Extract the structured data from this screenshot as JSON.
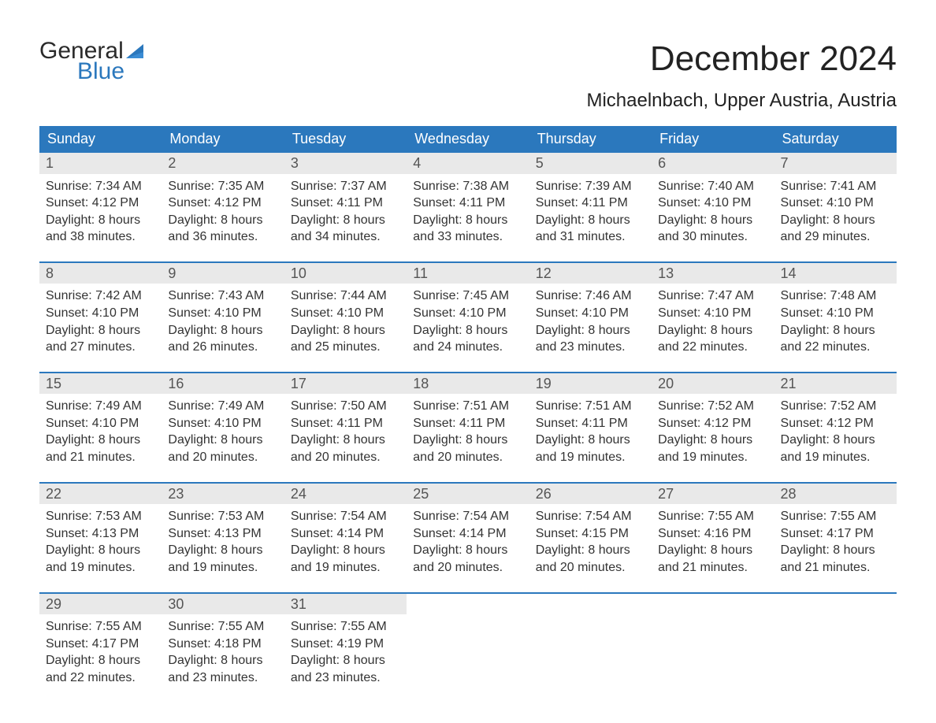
{
  "brand": {
    "general": "General",
    "blue": "Blue",
    "flag_color": "#2b78bd",
    "general_color": "#2a2a2a",
    "blue_color": "#2b78bd"
  },
  "title": "December 2024",
  "subtitle": "Michaelnbach, Upper Austria, Austria",
  "colors": {
    "header_bg": "#2b78bd",
    "header_text": "#ffffff",
    "week_border": "#2b78bd",
    "date_bg": "#e9e9e9",
    "date_text": "#555555",
    "body_text": "#333333",
    "background": "#ffffff"
  },
  "typography": {
    "title_fontsize": 44,
    "subtitle_fontsize": 24,
    "dayname_fontsize": 18,
    "date_fontsize": 18,
    "info_fontsize": 16
  },
  "daynames": [
    "Sunday",
    "Monday",
    "Tuesday",
    "Wednesday",
    "Thursday",
    "Friday",
    "Saturday"
  ],
  "weeks": [
    [
      {
        "date": "1",
        "sunrise": "Sunrise: 7:34 AM",
        "sunset": "Sunset: 4:12 PM",
        "day1": "Daylight: 8 hours",
        "day2": "and 38 minutes."
      },
      {
        "date": "2",
        "sunrise": "Sunrise: 7:35 AM",
        "sunset": "Sunset: 4:12 PM",
        "day1": "Daylight: 8 hours",
        "day2": "and 36 minutes."
      },
      {
        "date": "3",
        "sunrise": "Sunrise: 7:37 AM",
        "sunset": "Sunset: 4:11 PM",
        "day1": "Daylight: 8 hours",
        "day2": "and 34 minutes."
      },
      {
        "date": "4",
        "sunrise": "Sunrise: 7:38 AM",
        "sunset": "Sunset: 4:11 PM",
        "day1": "Daylight: 8 hours",
        "day2": "and 33 minutes."
      },
      {
        "date": "5",
        "sunrise": "Sunrise: 7:39 AM",
        "sunset": "Sunset: 4:11 PM",
        "day1": "Daylight: 8 hours",
        "day2": "and 31 minutes."
      },
      {
        "date": "6",
        "sunrise": "Sunrise: 7:40 AM",
        "sunset": "Sunset: 4:10 PM",
        "day1": "Daylight: 8 hours",
        "day2": "and 30 minutes."
      },
      {
        "date": "7",
        "sunrise": "Sunrise: 7:41 AM",
        "sunset": "Sunset: 4:10 PM",
        "day1": "Daylight: 8 hours",
        "day2": "and 29 minutes."
      }
    ],
    [
      {
        "date": "8",
        "sunrise": "Sunrise: 7:42 AM",
        "sunset": "Sunset: 4:10 PM",
        "day1": "Daylight: 8 hours",
        "day2": "and 27 minutes."
      },
      {
        "date": "9",
        "sunrise": "Sunrise: 7:43 AM",
        "sunset": "Sunset: 4:10 PM",
        "day1": "Daylight: 8 hours",
        "day2": "and 26 minutes."
      },
      {
        "date": "10",
        "sunrise": "Sunrise: 7:44 AM",
        "sunset": "Sunset: 4:10 PM",
        "day1": "Daylight: 8 hours",
        "day2": "and 25 minutes."
      },
      {
        "date": "11",
        "sunrise": "Sunrise: 7:45 AM",
        "sunset": "Sunset: 4:10 PM",
        "day1": "Daylight: 8 hours",
        "day2": "and 24 minutes."
      },
      {
        "date": "12",
        "sunrise": "Sunrise: 7:46 AM",
        "sunset": "Sunset: 4:10 PM",
        "day1": "Daylight: 8 hours",
        "day2": "and 23 minutes."
      },
      {
        "date": "13",
        "sunrise": "Sunrise: 7:47 AM",
        "sunset": "Sunset: 4:10 PM",
        "day1": "Daylight: 8 hours",
        "day2": "and 22 minutes."
      },
      {
        "date": "14",
        "sunrise": "Sunrise: 7:48 AM",
        "sunset": "Sunset: 4:10 PM",
        "day1": "Daylight: 8 hours",
        "day2": "and 22 minutes."
      }
    ],
    [
      {
        "date": "15",
        "sunrise": "Sunrise: 7:49 AM",
        "sunset": "Sunset: 4:10 PM",
        "day1": "Daylight: 8 hours",
        "day2": "and 21 minutes."
      },
      {
        "date": "16",
        "sunrise": "Sunrise: 7:49 AM",
        "sunset": "Sunset: 4:10 PM",
        "day1": "Daylight: 8 hours",
        "day2": "and 20 minutes."
      },
      {
        "date": "17",
        "sunrise": "Sunrise: 7:50 AM",
        "sunset": "Sunset: 4:11 PM",
        "day1": "Daylight: 8 hours",
        "day2": "and 20 minutes."
      },
      {
        "date": "18",
        "sunrise": "Sunrise: 7:51 AM",
        "sunset": "Sunset: 4:11 PM",
        "day1": "Daylight: 8 hours",
        "day2": "and 20 minutes."
      },
      {
        "date": "19",
        "sunrise": "Sunrise: 7:51 AM",
        "sunset": "Sunset: 4:11 PM",
        "day1": "Daylight: 8 hours",
        "day2": "and 19 minutes."
      },
      {
        "date": "20",
        "sunrise": "Sunrise: 7:52 AM",
        "sunset": "Sunset: 4:12 PM",
        "day1": "Daylight: 8 hours",
        "day2": "and 19 minutes."
      },
      {
        "date": "21",
        "sunrise": "Sunrise: 7:52 AM",
        "sunset": "Sunset: 4:12 PM",
        "day1": "Daylight: 8 hours",
        "day2": "and 19 minutes."
      }
    ],
    [
      {
        "date": "22",
        "sunrise": "Sunrise: 7:53 AM",
        "sunset": "Sunset: 4:13 PM",
        "day1": "Daylight: 8 hours",
        "day2": "and 19 minutes."
      },
      {
        "date": "23",
        "sunrise": "Sunrise: 7:53 AM",
        "sunset": "Sunset: 4:13 PM",
        "day1": "Daylight: 8 hours",
        "day2": "and 19 minutes."
      },
      {
        "date": "24",
        "sunrise": "Sunrise: 7:54 AM",
        "sunset": "Sunset: 4:14 PM",
        "day1": "Daylight: 8 hours",
        "day2": "and 19 minutes."
      },
      {
        "date": "25",
        "sunrise": "Sunrise: 7:54 AM",
        "sunset": "Sunset: 4:14 PM",
        "day1": "Daylight: 8 hours",
        "day2": "and 20 minutes."
      },
      {
        "date": "26",
        "sunrise": "Sunrise: 7:54 AM",
        "sunset": "Sunset: 4:15 PM",
        "day1": "Daylight: 8 hours",
        "day2": "and 20 minutes."
      },
      {
        "date": "27",
        "sunrise": "Sunrise: 7:55 AM",
        "sunset": "Sunset: 4:16 PM",
        "day1": "Daylight: 8 hours",
        "day2": "and 21 minutes."
      },
      {
        "date": "28",
        "sunrise": "Sunrise: 7:55 AM",
        "sunset": "Sunset: 4:17 PM",
        "day1": "Daylight: 8 hours",
        "day2": "and 21 minutes."
      }
    ],
    [
      {
        "date": "29",
        "sunrise": "Sunrise: 7:55 AM",
        "sunset": "Sunset: 4:17 PM",
        "day1": "Daylight: 8 hours",
        "day2": "and 22 minutes."
      },
      {
        "date": "30",
        "sunrise": "Sunrise: 7:55 AM",
        "sunset": "Sunset: 4:18 PM",
        "day1": "Daylight: 8 hours",
        "day2": "and 23 minutes."
      },
      {
        "date": "31",
        "sunrise": "Sunrise: 7:55 AM",
        "sunset": "Sunset: 4:19 PM",
        "day1": "Daylight: 8 hours",
        "day2": "and 23 minutes."
      },
      {
        "empty": true
      },
      {
        "empty": true
      },
      {
        "empty": true
      },
      {
        "empty": true
      }
    ]
  ]
}
